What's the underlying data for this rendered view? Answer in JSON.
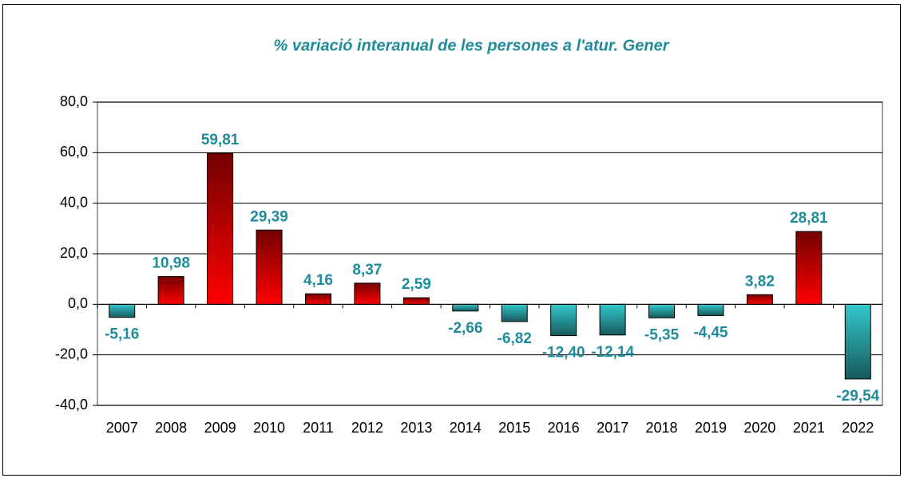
{
  "chart_data": {
    "type": "bar",
    "title": "% variació interanual de les persones a l'atur. Gener",
    "categories": [
      "2007",
      "2008",
      "2009",
      "2010",
      "2011",
      "2012",
      "2013",
      "2014",
      "2015",
      "2016",
      "2017",
      "2018",
      "2019",
      "2020",
      "2021",
      "2022"
    ],
    "values": [
      -5.16,
      10.98,
      59.81,
      29.39,
      4.16,
      8.37,
      2.59,
      -2.66,
      -6.82,
      -12.4,
      -12.14,
      -5.35,
      -4.45,
      3.82,
      28.81,
      -29.54
    ],
    "value_labels": [
      "-5,16",
      "10,98",
      "59,81",
      "29,39",
      "4,16",
      "8,37",
      "2,59",
      "-2,66",
      "-6,82",
      "-12,40",
      "-12,14",
      "-5,35",
      "-4,45",
      "3,82",
      "28,81",
      "-29,54"
    ],
    "positive_color": "#ff0000",
    "negative_color": "#33c8cc",
    "ylim": [
      -40,
      80
    ],
    "yticks": [
      {
        "value": -40,
        "label": "-40,0"
      },
      {
        "value": -20,
        "label": "-20,0"
      },
      {
        "value": 0,
        "label": "0,0"
      },
      {
        "value": 20,
        "label": "20,0"
      },
      {
        "value": 40,
        "label": "40,0"
      },
      {
        "value": 60,
        "label": "60,0"
      },
      {
        "value": 80,
        "label": "80,0"
      }
    ],
    "grid": true
  }
}
